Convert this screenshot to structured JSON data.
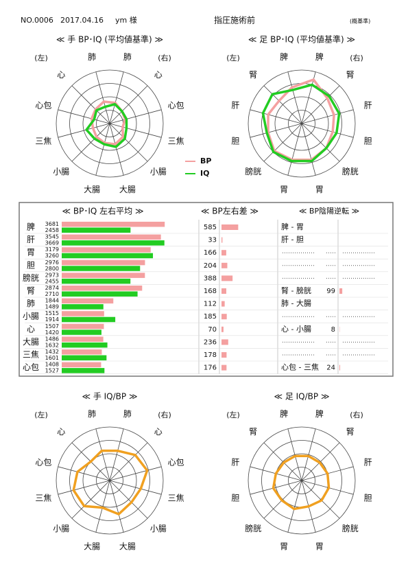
{
  "header": {
    "no": "NO.0006",
    "date": "2017.04.16",
    "name": "ym 様",
    "status": "指圧施術前",
    "note": "(概基準)"
  },
  "chart_data": [
    {
      "type": "radar",
      "title": "≪ 手 BP･IQ (平均値基準) ≫",
      "side_labels": [
        "(左)",
        "(右)"
      ],
      "categories": [
        "肺",
        "心",
        "心包",
        "三焦",
        "小腸",
        "大腸",
        "大腸",
        "小腸",
        "三焦",
        "心包",
        "心",
        "肺"
      ],
      "category_colors": [
        "#1a1a8c",
        "#1a1a8c",
        "#1a1a8c",
        "#7a1a1a",
        "#7a1a1a",
        "#7a1a1a",
        "#7a1a1a",
        "#7a1a1a",
        "#7a1a1a",
        "#1a1a8c",
        "#1a1a8c",
        "#1a1a8c"
      ],
      "rlim": [
        0,
        4
      ],
      "legend": true,
      "series": [
        {
          "name": "BP",
          "color": "#f4a0a0",
          "values": [
            1.6,
            1.3,
            1.2,
            1.0,
            1.4,
            1.6,
            1.5,
            1.4,
            1.3,
            1.4,
            1.5,
            1.7
          ]
        },
        {
          "name": "IQ",
          "color": "#22cc22",
          "values": [
            1.5,
            1.3,
            1.3,
            1.3,
            1.6,
            1.8,
            1.6,
            1.6,
            1.8,
            1.2,
            1.4,
            1.3
          ]
        }
      ]
    },
    {
      "type": "radar",
      "title": "≪ 足 BP･IQ (平均値基準) ≫",
      "side_labels": [
        "(左)",
        "(右)"
      ],
      "categories": [
        "脾",
        "腎",
        "肝",
        "胆",
        "膀胱",
        "胃",
        "胃",
        "膀胱",
        "胆",
        "肝",
        "腎",
        "脾"
      ],
      "category_colors": [
        "#1a1a8c",
        "#1a1a8c",
        "#1a1a8c",
        "#7a1a1a",
        "#7a1a1a",
        "#7a1a1a",
        "#7a1a1a",
        "#7a1a1a",
        "#7a1a1a",
        "#1a1a8c",
        "#1a1a8c",
        "#1a1a8c"
      ],
      "rlim": [
        0,
        4
      ],
      "legend": false,
      "series": [
        {
          "color": "#f4a0a0",
          "values": [
            3.4,
            2.7,
            2.5,
            2.4,
            2.6,
            2.8,
            2.8,
            2.9,
            2.6,
            2.6,
            2.4,
            2.8
          ]
        },
        {
          "color": "#22cc22",
          "values": [
            3.0,
            2.9,
            2.9,
            2.7,
            2.6,
            2.9,
            2.9,
            3.0,
            2.7,
            3.0,
            3.1,
            2.6
          ]
        }
      ]
    },
    {
      "type": "bar_table",
      "titles": [
        "≪ BP･IQ 左右平均 ≫",
        "≪ BP左右差 ≫",
        "≪ BP陰陽逆転 ≫"
      ],
      "categories": [
        "脾",
        "肝",
        "胃",
        "胆",
        "膀胱",
        "腎",
        "肺",
        "小腸",
        "心",
        "大腸",
        "三焦",
        "心包"
      ],
      "bp_color": "#f4a0a0",
      "iq_color": "#22cc22",
      "xlim": [
        0,
        3700
      ],
      "bp_values": [
        3681,
        3545,
        3179,
        2976,
        2973,
        2874,
        1844,
        1515,
        1507,
        1486,
        1432,
        1408
      ],
      "iq_values": [
        2458,
        3669,
        3260,
        2800,
        2455,
        2710,
        1489,
        1914,
        1420,
        1632,
        1601,
        1527
      ],
      "diff_values": [
        585,
        33,
        166,
        204,
        388,
        168,
        112,
        185,
        70,
        236,
        178,
        176
      ],
      "diff_xlim": [
        0,
        600
      ],
      "reversal": [
        {
          "pair": "脾 - 胃",
          "value": null
        },
        {
          "pair": "肝 - 胆",
          "value": null
        },
        null,
        null,
        null,
        {
          "pair": "腎 - 膀胱",
          "value": 99
        },
        {
          "pair": "肺 - 大腸",
          "value": null
        },
        null,
        {
          "pair": "心 - 小腸",
          "value": 8
        },
        null,
        null,
        {
          "pair": "心包 - 三焦",
          "value": 24
        }
      ]
    },
    {
      "type": "radar",
      "title": "≪ 手 IQ/BP ≫",
      "side_labels": [
        "(左)",
        "(右)"
      ],
      "categories": [
        "肺",
        "心",
        "心包",
        "三焦",
        "小腸",
        "大腸",
        "大腸",
        "小腸",
        "三焦",
        "心包",
        "心",
        "肺"
      ],
      "category_colors": [
        "#1a1a8c",
        "#1a1a8c",
        "#1a1a8c",
        "#7a1a1a",
        "#7a1a1a",
        "#7a1a1a",
        "#7a1a1a",
        "#7a1a1a",
        "#7a1a1a",
        "#1a1a8c",
        "#1a1a8c",
        "#1a1a8c"
      ],
      "rlim": [
        0,
        4
      ],
      "legend": false,
      "series": [
        {
          "color": "#f0a020",
          "values": [
            2.3,
            2.7,
            2.9,
            2.4,
            2.3,
            2.6,
            2.1,
            2.7,
            2.8,
            2.5,
            2.0,
            2.3
          ]
        }
      ]
    },
    {
      "type": "radar",
      "title": "≪ 足 IQ/BP ≫",
      "side_labels": [
        "(左)",
        "(右)"
      ],
      "categories": [
        "脾",
        "腎",
        "肝",
        "胆",
        "膀胱",
        "胃",
        "胃",
        "膀胱",
        "胆",
        "肝",
        "腎",
        "脾"
      ],
      "category_colors": [
        "#1a1a8c",
        "#1a1a8c",
        "#1a1a8c",
        "#7a1a1a",
        "#7a1a1a",
        "#7a1a1a",
        "#7a1a1a",
        "#7a1a1a",
        "#7a1a1a",
        "#1a1a8c",
        "#1a1a8c",
        "#1a1a8c"
      ],
      "rlim": [
        0,
        4
      ],
      "legend": false,
      "series": [
        {
          "color": "#f0a020",
          "values": [
            1.9,
            1.9,
            2.0,
            2.1,
            2.1,
            2.0,
            2.2,
            2.1,
            2.2,
            2.0,
            1.9,
            1.9
          ]
        }
      ]
    }
  ]
}
